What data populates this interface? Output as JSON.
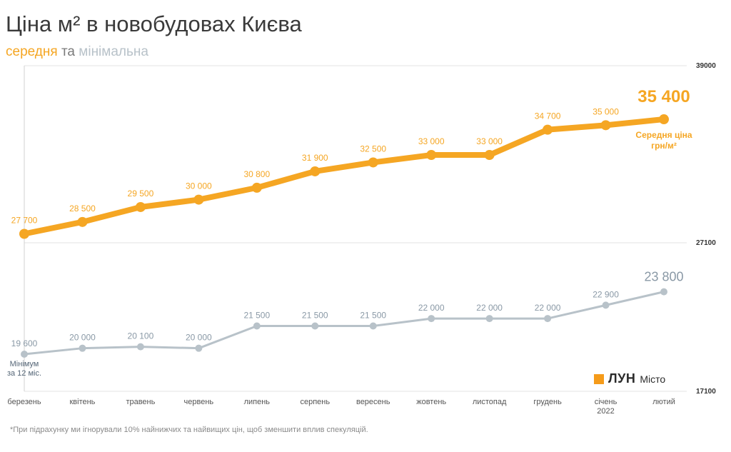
{
  "title": "Ціна м² в новобудовах Києва",
  "subtitle": {
    "avg": "середня",
    "and": "та",
    "min": "мінімальна"
  },
  "footnote": "*При підрахунку ми ігнорували 10% найнижчих та найвищих цін, щоб зменшити вплив спекуляцій.",
  "logo": {
    "name": "ЛУН",
    "sub": "Місто"
  },
  "colors": {
    "avg": "#f5a623",
    "min": "#b8c2c9",
    "min_text": "#8a99a6",
    "grid": "#e3e3e3",
    "axis": "#d0d0d0"
  },
  "chart_data": {
    "type": "line",
    "categories": [
      "березень",
      "квітень",
      "травень",
      "червень",
      "липень",
      "серпень",
      "вересень",
      "жовтень",
      "листопад",
      "грудень",
      "січень",
      "лютий"
    ],
    "category_sublabels": [
      "",
      "",
      "",
      "",
      "",
      "",
      "",
      "",
      "",
      "",
      "2022",
      ""
    ],
    "y_ticks": [
      39000,
      27100,
      17100
    ],
    "y_tick_labels": [
      "39000",
      "27100",
      "17100"
    ],
    "series": [
      {
        "key": "avg",
        "values": [
          27700,
          28500,
          29500,
          30000,
          30800,
          31900,
          32500,
          33000,
          33000,
          34700,
          35000,
          35400
        ],
        "labels": [
          "27 700",
          "28 500",
          "29 500",
          "30 000",
          "30 800",
          "31 900",
          "32 500",
          "33 000",
          "33 000",
          "34 700",
          "35 000",
          "35 400"
        ],
        "end_note_1": "Середня ціна",
        "end_note_2": "грн/м²"
      },
      {
        "key": "min",
        "values": [
          19600,
          20000,
          20100,
          20000,
          21500,
          21500,
          21500,
          22000,
          22000,
          22000,
          22900,
          23800
        ],
        "labels": [
          "19 600",
          "20 000",
          "20 100",
          "20 000",
          "21 500",
          "21 500",
          "21 500",
          "22 000",
          "22 000",
          "22 000",
          "22 900",
          "23 800"
        ],
        "start_note_1": "Мінімум",
        "start_note_2": "за 12 міс."
      }
    ]
  }
}
